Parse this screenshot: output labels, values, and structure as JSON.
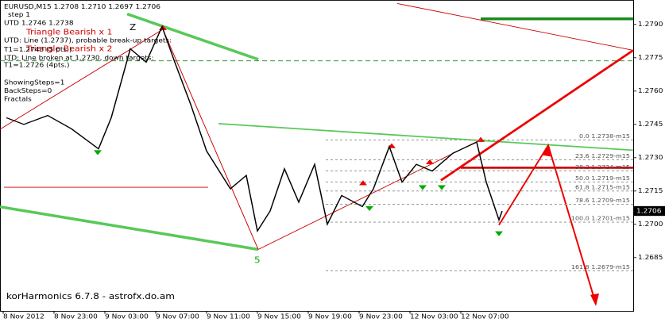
{
  "chart_data": {
    "type": "line",
    "title": "EURUSD,M15  1.2708 1.2710 1.2697 1.2706",
    "info_lines": [
      "step 1",
      "UTD 1.2746 1.2738",
      "Triangle Bearish x 1",
      "UTD: Line (1.2737), probable break-up targets:",
      "Triangle Bearish x 2",
      "T1=1.2743 (5 pts.)",
      "LTD: Line broken at 1.2730, down targets:",
      "T1=1.2726 (4pts.)",
      "ShowingSteps=1",
      "BackSteps=0",
      "Fractals"
    ],
    "footer": "korHarmonics 6.7.8 - astrofx.do.am",
    "pattern_labels": [
      "Z",
      "5"
    ],
    "x": [
      1,
      6.5,
      14,
      21.5,
      30,
      34,
      40,
      45,
      50,
      54,
      59,
      64,
      71.5,
      76.5,
      80,
      84,
      88.5,
      93,
      98,
      102,
      106.5,
      113,
      116.5,
      121.5,
      125.5,
      130,
      135,
      141.5,
      149,
      152,
      156,
      157
    ],
    "series": [
      {
        "name": "EURUSD",
        "color": "#000000",
        "values": [
          1.2748,
          1.2745,
          1.2749,
          1.2743,
          1.2734,
          1.2748,
          1.2779,
          1.2773,
          1.2789,
          1.2773,
          1.2754,
          1.2733,
          1.2716,
          1.2722,
          1.2697,
          1.2706,
          1.2725,
          1.271,
          1.2727,
          1.27,
          1.2713,
          1.2708,
          1.2716,
          1.2735,
          1.2719,
          1.2727,
          1.2724,
          1.2732,
          1.2737,
          1.2719,
          1.2702,
          1.2706
        ]
      }
    ],
    "xlim": [
      -1,
      198.25
    ],
    "xticks": [
      {
        "value": 0,
        "label": "8 Nov 2012"
      },
      {
        "value": 16,
        "label": "8 Nov 23:00"
      },
      {
        "value": 32,
        "label": "9 Nov 03:00"
      },
      {
        "value": 48,
        "label": "9 Nov 07:00"
      },
      {
        "value": 64,
        "label": "9 Nov 11:00"
      },
      {
        "value": 80,
        "label": "9 Nov 15:00"
      },
      {
        "value": 96,
        "label": "9 Nov 19:00"
      },
      {
        "value": 112,
        "label": "9 Nov 23:00"
      },
      {
        "value": 128,
        "label": "12 Nov 03:00"
      },
      {
        "value": 144,
        "label": "12 Nov 07:00"
      }
    ],
    "ylim": [
      1.2661,
      1.2801
    ],
    "yticks": [
      {
        "value": 1.279,
        "label": "1.2790"
      },
      1.2775,
      {
        "value": 1.276,
        "label": "1.2760"
      },
      1.2745,
      {
        "value": 1.273,
        "label": "1.2730"
      },
      1.2715,
      {
        "value": 1.27,
        "label": "1.2700"
      },
      1.2685
    ],
    "fib_levels": [
      {
        "label": "0.0 1.2738-m15",
        "value": 1.2738
      },
      {
        "label": "23.6 1.2729-m15",
        "value": 1.2729
      },
      {
        "label": "38.2 1.2724-m15",
        "value": 1.2724
      },
      {
        "label": "50.0 1.2719-m15",
        "value": 1.2719
      },
      {
        "label": "61.8 1.2715-m15",
        "value": 1.2715
      },
      {
        "label": "78.6 1.2709-m15",
        "value": 1.2709
      },
      {
        "label": "100.0 1.2701-m15",
        "value": 1.2701
      },
      {
        "label": "161.8 1.2679-m15",
        "value": 1.2679
      }
    ],
    "last_price": 1.2706
  }
}
